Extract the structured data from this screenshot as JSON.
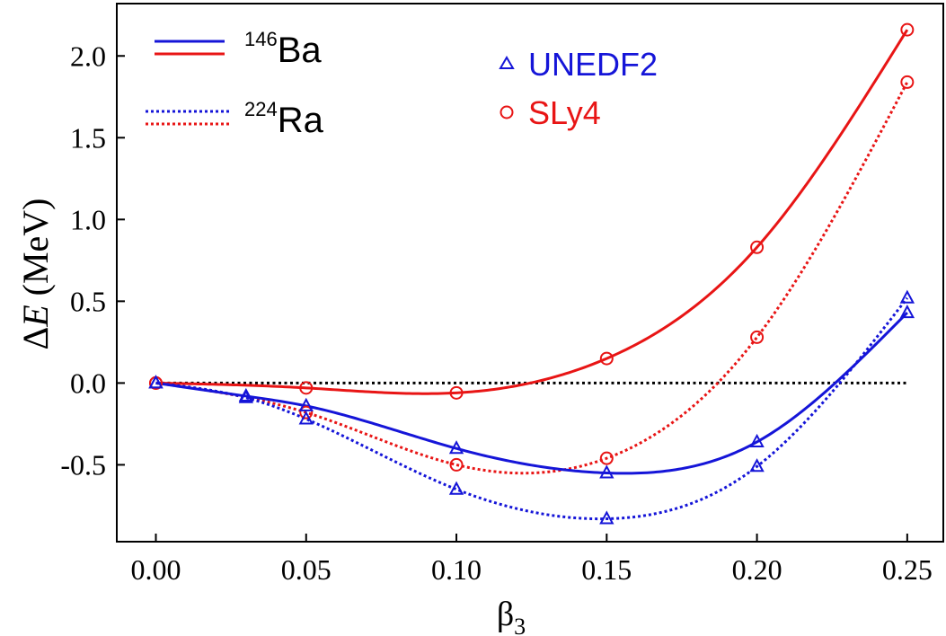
{
  "chart_data": {
    "type": "line",
    "xlabel": "β",
    "xlabel_sub": "3",
    "ylabel_delta": "Δ",
    "ylabel_var": "E",
    "ylabel_unit": " (MeV)",
    "xlim": [
      -0.013,
      0.262
    ],
    "ylim": [
      -0.97,
      2.32
    ],
    "x_ticks": [
      {
        "value": 0.0,
        "label": "0.00"
      },
      {
        "value": 0.05,
        "label": "0.05"
      },
      {
        "value": 0.1,
        "label": "0.10"
      },
      {
        "value": 0.15,
        "label": "0.15"
      },
      {
        "value": 0.2,
        "label": "0.20"
      },
      {
        "value": 0.25,
        "label": "0.25"
      }
    ],
    "y_ticks": [
      {
        "value": -0.5,
        "label": "-0.5"
      },
      {
        "value": 0.0,
        "label": "0.0"
      },
      {
        "value": 0.5,
        "label": "0.5"
      },
      {
        "value": 1.0,
        "label": "1.0"
      },
      {
        "value": 1.5,
        "label": "1.5"
      },
      {
        "value": 2.0,
        "label": "2.0"
      }
    ],
    "reference_line": {
      "y": 0.0,
      "x_range": [
        0.0,
        0.25
      ],
      "style": "dotted",
      "color": "#000000"
    },
    "legend_nuclei": [
      {
        "mass": "146",
        "element": "Ba",
        "style": "solid"
      },
      {
        "mass": "224",
        "element": "Ra",
        "style": "dotted"
      }
    ],
    "legend_models": [
      {
        "label": "UNEDF2",
        "marker": "triangle",
        "color": "#1515d8"
      },
      {
        "label": "SLy4",
        "marker": "circle",
        "color": "#e81515"
      }
    ],
    "series": [
      {
        "nucleus": "146Ba",
        "model": "SLy4",
        "color": "#e81515",
        "style": "solid",
        "marker": "circle",
        "x": [
          0.0,
          0.05,
          0.1,
          0.15,
          0.2,
          0.25
        ],
        "y": [
          0.0,
          -0.03,
          -0.06,
          0.15,
          0.83,
          2.16
        ]
      },
      {
        "nucleus": "224Ra",
        "model": "SLy4",
        "color": "#e81515",
        "style": "dotted",
        "marker": "circle",
        "x": [
          0.0,
          0.05,
          0.1,
          0.15,
          0.2,
          0.25
        ],
        "y": [
          0.0,
          -0.18,
          -0.5,
          -0.46,
          0.28,
          1.84
        ]
      },
      {
        "nucleus": "146Ba",
        "model": "UNEDF2",
        "color": "#1515d8",
        "style": "solid",
        "marker": "triangle",
        "x": [
          0.0,
          0.03,
          0.05,
          0.1,
          0.15,
          0.2,
          0.25
        ],
        "y": [
          0.0,
          -0.08,
          -0.14,
          -0.4,
          -0.55,
          -0.36,
          0.43
        ]
      },
      {
        "nucleus": "224Ra",
        "model": "UNEDF2",
        "color": "#1515d8",
        "style": "dotted",
        "marker": "triangle",
        "x": [
          0.0,
          0.03,
          0.05,
          0.1,
          0.15,
          0.2,
          0.25
        ],
        "y": [
          0.0,
          -0.09,
          -0.22,
          -0.65,
          -0.83,
          -0.51,
          0.52
        ]
      }
    ]
  }
}
